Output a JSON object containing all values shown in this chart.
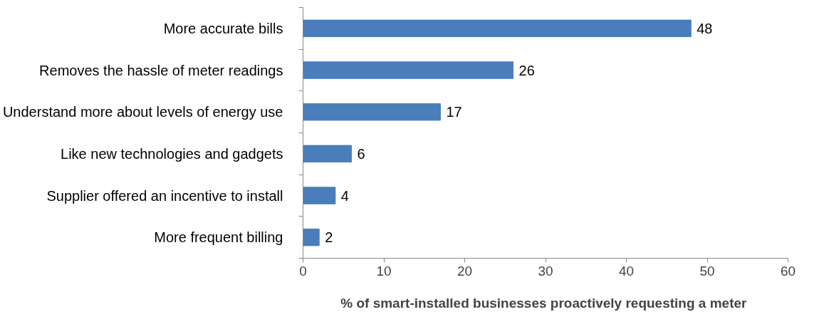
{
  "chart_data": {
    "type": "bar",
    "orientation": "horizontal",
    "xlabel": "% of smart-installed  businesses proactively requesting a meter",
    "categories": [
      "More accurate bills",
      "Removes the hassle of meter readings",
      "Understand more about levels of energy use",
      "Like new technologies and gadgets",
      "Supplier offered an incentive to install",
      "More frequent billing"
    ],
    "values": [
      48,
      26,
      17,
      6,
      4,
      2
    ],
    "color": "#4a7ebb",
    "xlim": [
      0,
      60
    ],
    "xticks": [
      0,
      10,
      20,
      30,
      40,
      50,
      60
    ],
    "grid": false,
    "data_labels": true
  }
}
